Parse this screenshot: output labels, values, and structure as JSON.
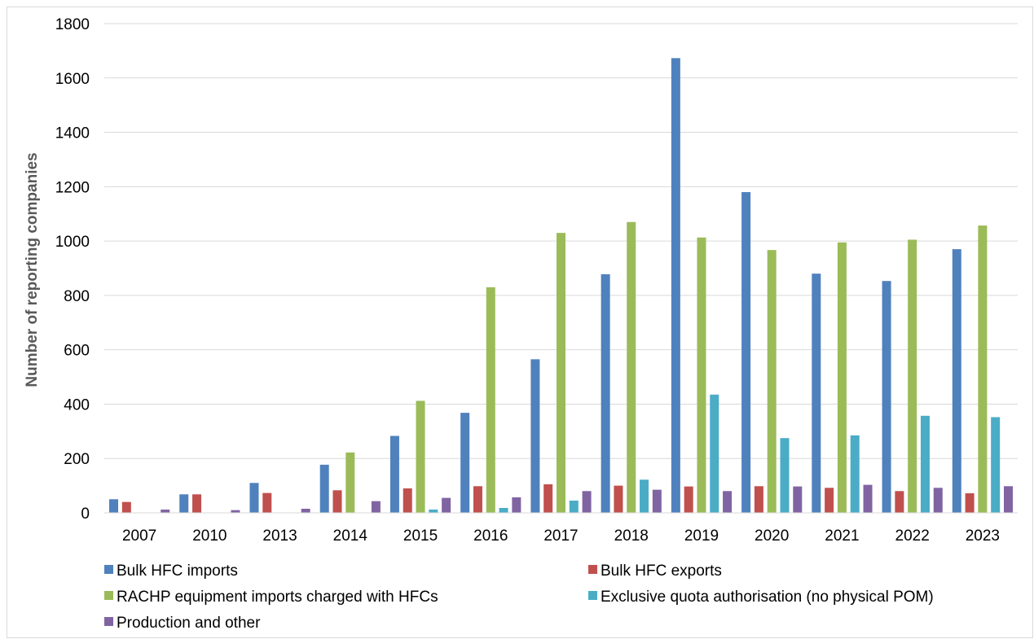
{
  "chart_data": {
    "type": "bar",
    "title": "",
    "xlabel": "",
    "ylabel": "Number of reporting companies",
    "ylim": [
      0,
      1800
    ],
    "yticks": [
      0,
      200,
      400,
      600,
      800,
      1000,
      1200,
      1400,
      1600,
      1800
    ],
    "grid": true,
    "legend_position": "bottom",
    "categories": [
      "2007",
      "2010",
      "2013",
      "2014",
      "2015",
      "2016",
      "2017",
      "2018",
      "2019",
      "2020",
      "2021",
      "2022",
      "2023"
    ],
    "series": [
      {
        "name": "Bulk HFC imports",
        "color": "#4F81BD",
        "values": [
          50,
          68,
          110,
          177,
          283,
          368,
          565,
          878,
          1673,
          1180,
          880,
          853,
          970
        ]
      },
      {
        "name": "Bulk HFC exports",
        "color": "#C0504D",
        "values": [
          40,
          68,
          73,
          83,
          90,
          98,
          105,
          100,
          97,
          98,
          92,
          80,
          72
        ]
      },
      {
        "name": "RACHP equipment imports charged with HFCs",
        "color": "#9BBB59",
        "values": [
          0,
          0,
          0,
          222,
          412,
          830,
          1030,
          1070,
          1013,
          967,
          995,
          1005,
          1057
        ]
      },
      {
        "name": "Exclusive quota authorisation (no physical POM)",
        "color": "#4BACC6",
        "values": [
          0,
          0,
          0,
          0,
          12,
          18,
          45,
          122,
          435,
          275,
          285,
          357,
          352
        ]
      },
      {
        "name": "Production and other",
        "color": "#8064A2",
        "values": [
          12,
          10,
          15,
          43,
          55,
          57,
          80,
          85,
          80,
          97,
          103,
          92,
          98
        ]
      }
    ]
  }
}
